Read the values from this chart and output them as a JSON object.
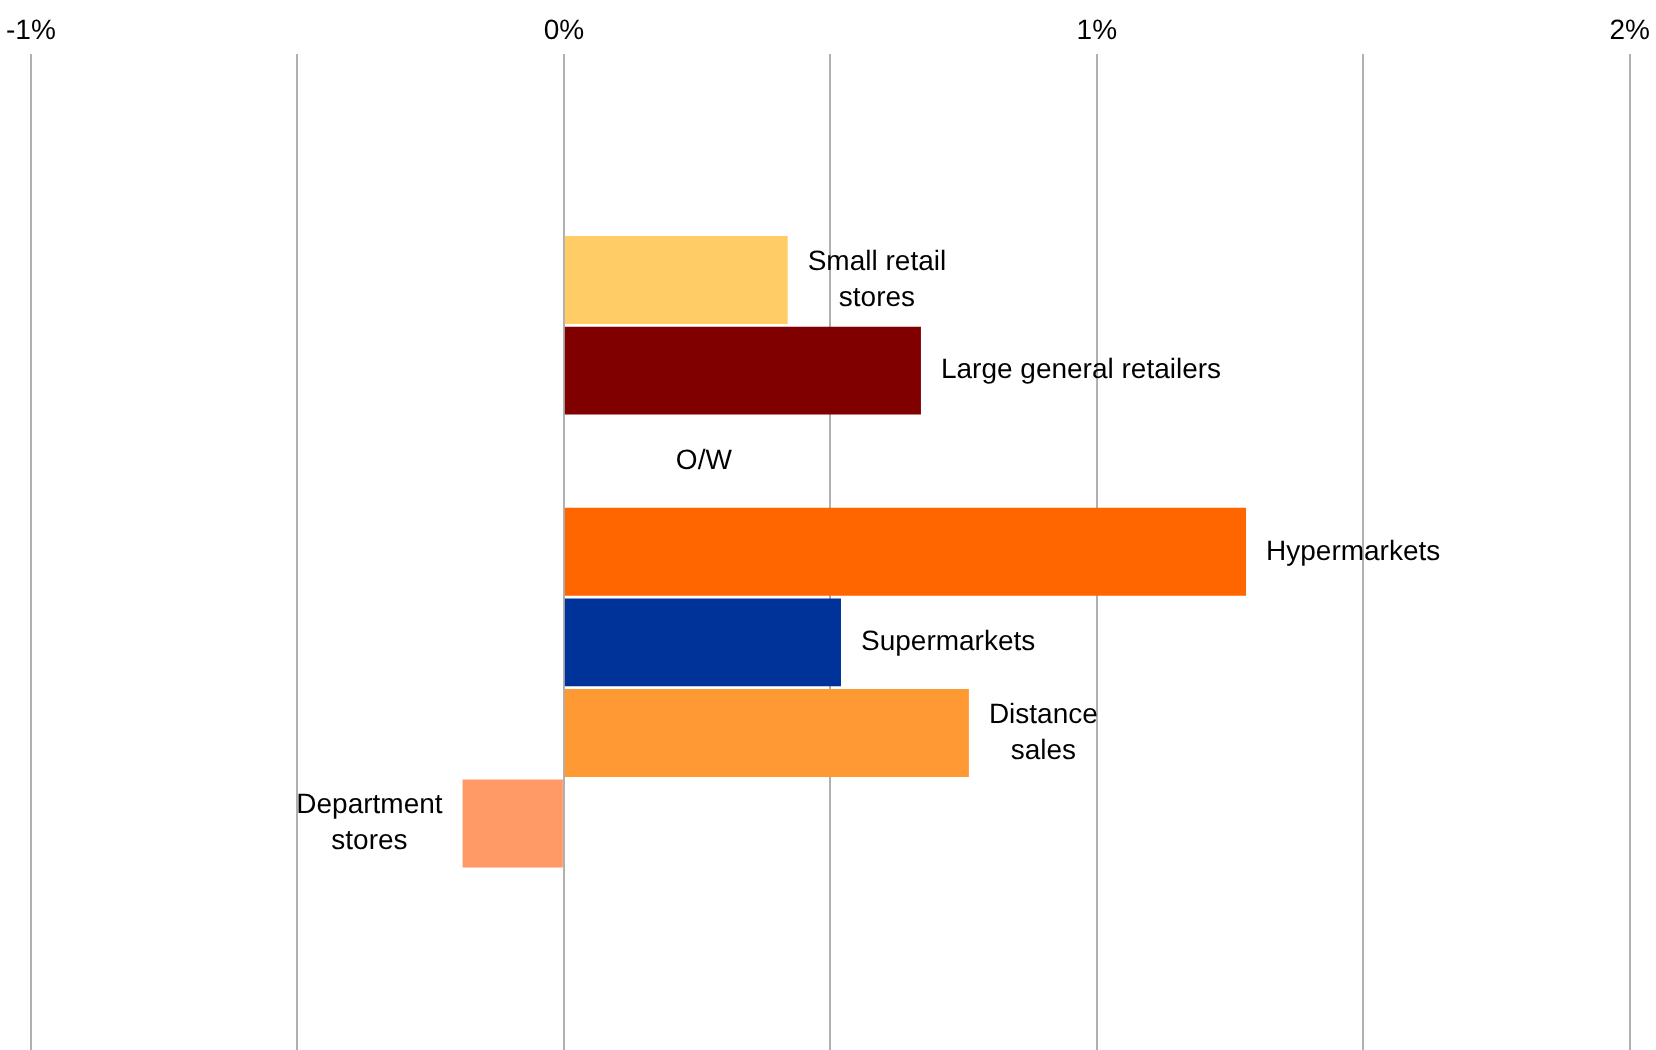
{
  "chart_data": {
    "type": "bar",
    "orientation": "horizontal",
    "categories": [
      null,
      null,
      "Small retail stores",
      "Large general retailers",
      "O/W",
      "Hypermarkets",
      "Supermarkets",
      "Distance sales",
      "Department stores",
      null,
      null
    ],
    "values": [
      null,
      null,
      0.42,
      0.67,
      null,
      1.28,
      0.52,
      0.76,
      -0.19,
      null,
      null
    ],
    "colors": [
      "#ffcc66",
      "#ffcc66",
      "#ffcc66",
      "#800000",
      "#ff6600",
      "#ff6600",
      "#003399",
      "#ff9933",
      "#ff9966",
      "#ff9966",
      "#ff9966"
    ],
    "xlim": [
      -1,
      2
    ],
    "xticks": [
      {
        "value": -1,
        "label": "-1%"
      },
      {
        "value": -0.5,
        "label": null
      },
      {
        "value": 0,
        "label": "0%"
      },
      {
        "value": 0.5,
        "label": null
      },
      {
        "value": 1,
        "label": "1%"
      },
      {
        "value": 1.5,
        "label": null
      },
      {
        "value": 2,
        "label": "2%"
      }
    ],
    "grid": "x"
  }
}
